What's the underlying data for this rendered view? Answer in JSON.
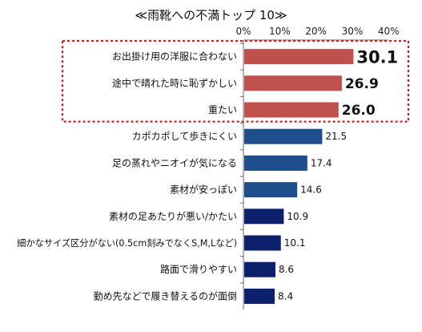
{
  "chart_data": {
    "type": "bar",
    "orientation": "horizontal",
    "title": "≪雨靴への不満トップ 10≫",
    "xlim": [
      0,
      40
    ],
    "x_tick_labels": [
      "0%",
      "10%",
      "20%",
      "30%",
      "40%"
    ],
    "grid": false,
    "categories": [
      "お出掛け用の洋服に合わない",
      "途中で晴れた時に恥ずかしい",
      "重たい",
      "カポカポして歩きにくい",
      "足の蒸れやニオイが気になる",
      "素材が安っぽい",
      "素材の足あたりが悪い/かたい",
      "細かなサイズ区分がない(0.5cm刻みでなくS,M,Lなど)",
      "路面で滑りやすい",
      "勤め先などで履き替えるのが面倒"
    ],
    "values": [
      30.1,
      26.9,
      26.0,
      21.5,
      17.4,
      14.6,
      10.9,
      10.1,
      8.6,
      8.4
    ],
    "value_labels": [
      "30.1",
      "26.9",
      "26.0",
      "21.5",
      "17.4",
      "14.6",
      "10.9",
      "10.1",
      "8.6",
      "8.4"
    ],
    "bar_colors": [
      "#c0504d",
      "#c0504d",
      "#c0504d",
      "#1f4e8c",
      "#1f4e8c",
      "#1f4e8c",
      "#0b1f6b",
      "#0b1f6b",
      "#0b1f6b",
      "#0b1f6b"
    ],
    "highlight": {
      "first_n": 3,
      "style": "dotted-box",
      "color": "#d11f1f"
    },
    "axis_color": "#666666"
  }
}
